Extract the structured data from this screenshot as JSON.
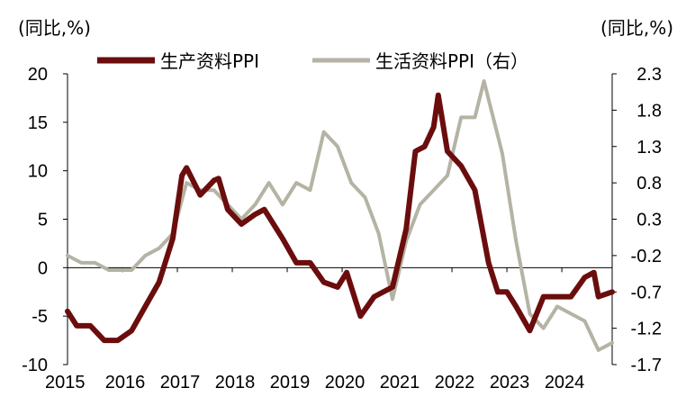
{
  "chart_data": {
    "type": "line",
    "title": "",
    "left_axis": {
      "unit_label": "(同比,%)",
      "ylim": [
        -10,
        20
      ],
      "ticks": [
        -10,
        -5,
        0,
        5,
        10,
        15,
        20
      ]
    },
    "right_axis": {
      "unit_label": "(同比,%)",
      "ylim": [
        -1.7,
        2.3
      ],
      "ticks": [
        "2.3",
        "1.8",
        "1.3",
        "0.8",
        "0.3",
        "-0.2",
        "-0.7",
        "-1.2",
        "-1.7"
      ]
    },
    "x_axis": {
      "labels": [
        "2015",
        "2016",
        "2017",
        "2018",
        "2019",
        "2020",
        "2021",
        "2022",
        "2023",
        "2024"
      ],
      "range": [
        "2015-01",
        "2024-12"
      ]
    },
    "legend": {
      "placement": "top"
    },
    "grid": false,
    "series": [
      {
        "name": "生产资料PPI",
        "axis": "left",
        "color": "#6b0d0d",
        "points": [
          [
            "2015-01",
            -4.5
          ],
          [
            "2015-03",
            -6.0
          ],
          [
            "2015-06",
            -6.0
          ],
          [
            "2015-09",
            -7.5
          ],
          [
            "2015-12",
            -7.5
          ],
          [
            "2016-03",
            -6.5
          ],
          [
            "2016-06",
            -4.0
          ],
          [
            "2016-09",
            -1.5
          ],
          [
            "2016-12",
            3.0
          ],
          [
            "2017-02",
            9.5
          ],
          [
            "2017-03",
            10.3
          ],
          [
            "2017-06",
            7.5
          ],
          [
            "2017-09",
            9.0
          ],
          [
            "2017-10",
            9.2
          ],
          [
            "2017-12",
            6.0
          ],
          [
            "2018-03",
            4.5
          ],
          [
            "2018-06",
            5.5
          ],
          [
            "2018-08",
            6.0
          ],
          [
            "2018-12",
            3.0
          ],
          [
            "2019-03",
            0.5
          ],
          [
            "2019-06",
            0.5
          ],
          [
            "2019-09",
            -1.5
          ],
          [
            "2019-12",
            -2.0
          ],
          [
            "2020-02",
            -0.5
          ],
          [
            "2020-05",
            -5.0
          ],
          [
            "2020-08",
            -3.0
          ],
          [
            "2020-12",
            -2.0
          ],
          [
            "2021-03",
            4.0
          ],
          [
            "2021-05",
            12.0
          ],
          [
            "2021-07",
            12.5
          ],
          [
            "2021-09",
            14.5
          ],
          [
            "2021-10",
            17.8
          ],
          [
            "2021-12",
            12.0
          ],
          [
            "2022-03",
            10.5
          ],
          [
            "2022-06",
            8.0
          ],
          [
            "2022-09",
            0.5
          ],
          [
            "2022-11",
            -2.5
          ],
          [
            "2023-01",
            -2.5
          ],
          [
            "2023-03",
            -4.0
          ],
          [
            "2023-06",
            -6.5
          ],
          [
            "2023-09",
            -3.0
          ],
          [
            "2023-12",
            -3.0
          ],
          [
            "2024-03",
            -3.0
          ],
          [
            "2024-06",
            -1.0
          ],
          [
            "2024-08",
            -0.5
          ],
          [
            "2024-09",
            -3.0
          ],
          [
            "2024-12",
            -2.5
          ]
        ]
      },
      {
        "name": "生活资料PPI（右）",
        "axis": "right",
        "color": "#b5b3a4",
        "points": [
          [
            "2015-01",
            -0.2
          ],
          [
            "2015-04",
            -0.3
          ],
          [
            "2015-07",
            -0.3
          ],
          [
            "2015-10",
            -0.4
          ],
          [
            "2015-12",
            -0.4
          ],
          [
            "2016-03",
            -0.4
          ],
          [
            "2016-06",
            -0.2
          ],
          [
            "2016-09",
            -0.1
          ],
          [
            "2016-12",
            0.1
          ],
          [
            "2017-03",
            0.8
          ],
          [
            "2017-06",
            0.7
          ],
          [
            "2017-09",
            0.7
          ],
          [
            "2017-12",
            0.5
          ],
          [
            "2018-03",
            0.3
          ],
          [
            "2018-06",
            0.5
          ],
          [
            "2018-09",
            0.8
          ],
          [
            "2018-12",
            0.5
          ],
          [
            "2019-03",
            0.8
          ],
          [
            "2019-06",
            0.7
          ],
          [
            "2019-09",
            1.5
          ],
          [
            "2019-12",
            1.3
          ],
          [
            "2020-03",
            0.8
          ],
          [
            "2020-06",
            0.6
          ],
          [
            "2020-09",
            0.1
          ],
          [
            "2020-12",
            -0.8
          ],
          [
            "2021-03",
            0.0
          ],
          [
            "2021-06",
            0.5
          ],
          [
            "2021-09",
            0.7
          ],
          [
            "2021-12",
            0.9
          ],
          [
            "2022-03",
            1.7
          ],
          [
            "2022-06",
            1.7
          ],
          [
            "2022-08",
            2.2
          ],
          [
            "2022-12",
            1.2
          ],
          [
            "2023-03",
            0.0
          ],
          [
            "2023-06",
            -1.0
          ],
          [
            "2023-09",
            -1.2
          ],
          [
            "2023-12",
            -0.9
          ],
          [
            "2024-03",
            -1.0
          ],
          [
            "2024-06",
            -1.1
          ],
          [
            "2024-09",
            -1.5
          ],
          [
            "2024-12",
            -1.4
          ]
        ]
      }
    ]
  }
}
